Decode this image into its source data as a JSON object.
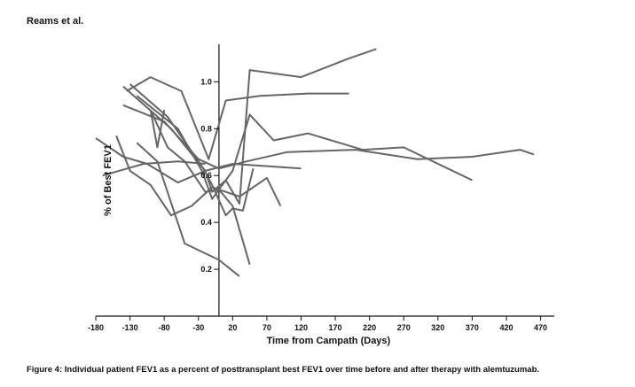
{
  "header": {
    "text": "Reams et al."
  },
  "caption": {
    "text": "Figure 4:  Individual patient FEV1 as a percent of posttransplant best FEV1 over time before and after therapy with alemtuzumab."
  },
  "chart_data": {
    "type": "line",
    "xlabel": "Time from Campath (Days)",
    "ylabel": "% of  Best  FEV1",
    "xlim": [
      -180,
      490
    ],
    "ylim": [
      0,
      1.16
    ],
    "x_ticks": [
      "-180",
      "-130",
      "-80",
      "-30",
      "20",
      "70",
      "120",
      "170",
      "220",
      "270",
      "320",
      "370",
      "420",
      "470"
    ],
    "y_ticks": [
      "0.2",
      "0.4",
      "0.6",
      "0.8",
      "1.0"
    ],
    "line_color": "#666666",
    "grid": false,
    "series": [
      {
        "points": [
          [
            -135,
            0.96
          ],
          [
            -100,
            1.02
          ],
          [
            -55,
            0.96
          ],
          [
            -15,
            0.67
          ],
          [
            10,
            0.92
          ],
          [
            60,
            0.94
          ],
          [
            130,
            0.95
          ],
          [
            190,
            0.95
          ]
        ]
      },
      {
        "points": [
          [
            -140,
            0.98
          ],
          [
            -70,
            0.8
          ],
          [
            -20,
            0.62
          ],
          [
            -10,
            0.53
          ],
          [
            10,
            0.58
          ],
          [
            30,
            0.48
          ],
          [
            45,
            1.05
          ],
          [
            120,
            1.02
          ],
          [
            190,
            1.1
          ],
          [
            230,
            1.14
          ]
        ]
      },
      {
        "points": [
          [
            -120,
            0.94
          ],
          [
            -60,
            0.8
          ],
          [
            -25,
            0.62
          ],
          [
            -10,
            0.5
          ],
          [
            20,
            0.62
          ],
          [
            45,
            0.86
          ],
          [
            80,
            0.75
          ],
          [
            130,
            0.78
          ],
          [
            210,
            0.71
          ],
          [
            270,
            0.72
          ],
          [
            370,
            0.58
          ]
        ]
      },
      {
        "points": [
          [
            -140,
            0.9
          ],
          [
            -80,
            0.83
          ],
          [
            -30,
            0.67
          ],
          [
            0,
            0.63
          ],
          [
            40,
            0.66
          ],
          [
            100,
            0.7
          ],
          [
            200,
            0.71
          ],
          [
            290,
            0.67
          ],
          [
            370,
            0.68
          ],
          [
            440,
            0.71
          ],
          [
            460,
            0.69
          ]
        ]
      },
      {
        "points": [
          [
            -180,
            0.76
          ],
          [
            -140,
            0.68
          ],
          [
            -105,
            0.65
          ],
          [
            -60,
            0.57
          ],
          [
            -20,
            0.62
          ],
          [
            20,
            0.65
          ],
          [
            120,
            0.63
          ]
        ]
      },
      {
        "points": [
          [
            -170,
            0.6
          ],
          [
            -110,
            0.65
          ],
          [
            -60,
            0.66
          ],
          [
            -20,
            0.65
          ]
        ]
      },
      {
        "points": [
          [
            -150,
            0.77
          ],
          [
            -130,
            0.62
          ],
          [
            -100,
            0.56
          ],
          [
            -70,
            0.43
          ],
          [
            -40,
            0.47
          ],
          [
            -10,
            0.55
          ],
          [
            30,
            0.51
          ],
          [
            70,
            0.59
          ],
          [
            90,
            0.47
          ]
        ]
      },
      {
        "points": [
          [
            -120,
            0.74
          ],
          [
            -90,
            0.66
          ],
          [
            -50,
            0.31
          ],
          [
            0,
            0.24
          ],
          [
            30,
            0.17
          ]
        ]
      },
      {
        "points": [
          [
            -100,
            0.88
          ],
          [
            -75,
            0.72
          ],
          [
            -50,
            0.66
          ],
          [
            -20,
            0.53
          ],
          [
            0,
            0.54
          ],
          [
            20,
            0.47
          ],
          [
            45,
            0.22
          ]
        ]
      },
      {
        "points": [
          [
            -130,
            0.99
          ],
          [
            -75,
            0.85
          ],
          [
            -25,
            0.64
          ],
          [
            -10,
            0.56
          ],
          [
            10,
            0.43
          ],
          [
            20,
            0.46
          ],
          [
            35,
            0.45
          ],
          [
            50,
            0.63
          ]
        ]
      },
      {
        "points": [
          [
            -100,
            0.88
          ],
          [
            -90,
            0.72
          ],
          [
            -80,
            0.88
          ]
        ]
      }
    ]
  }
}
